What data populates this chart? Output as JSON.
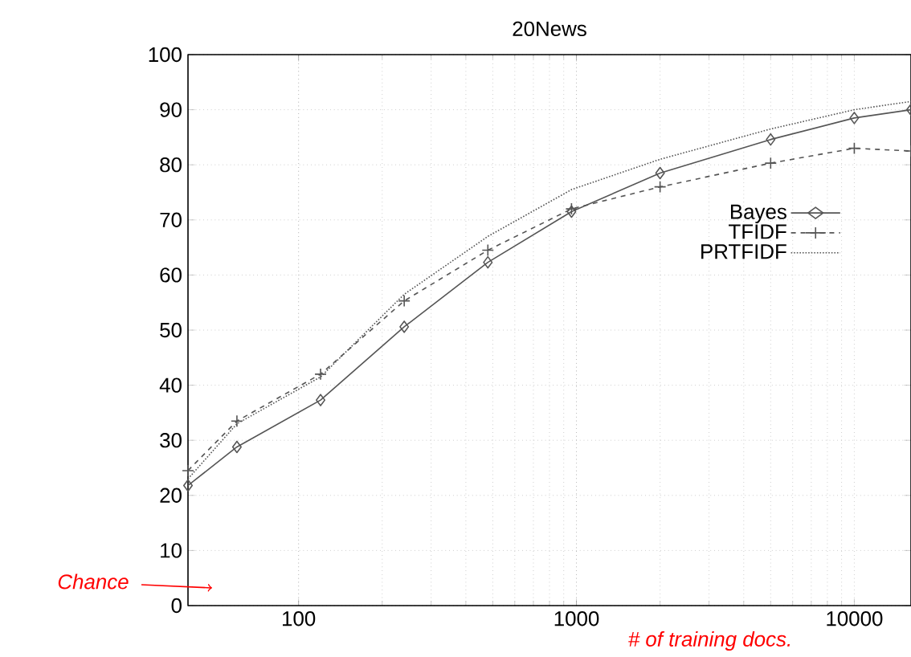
{
  "chart_data": {
    "type": "line",
    "title": "20News",
    "x": [
      40,
      60,
      120,
      240,
      480,
      960,
      2000,
      5000,
      10000,
      16000
    ],
    "series": [
      {
        "name": "Bayes",
        "color": "#555555",
        "marker": "diamond",
        "line_style": "solid",
        "values": [
          21.8,
          28.8,
          37.3,
          50.6,
          62.3,
          71.5,
          78.5,
          84.6,
          88.5,
          90
        ]
      },
      {
        "name": "TFIDF",
        "color": "#555555",
        "marker": "cross",
        "line_style": "dashed",
        "values": [
          24.5,
          33.5,
          42,
          55.3,
          64.5,
          72,
          76,
          80.3,
          83,
          82.5
        ]
      },
      {
        "name": "PRTFIDF",
        "color": "#555555",
        "marker": "none",
        "line_style": "dotted",
        "values": [
          23,
          33,
          41.5,
          56.5,
          67,
          75.5,
          81,
          86.5,
          90,
          91.5
        ]
      }
    ],
    "log": "x",
    "xlim": [
      40,
      16000
    ],
    "ylim": [
      0,
      100
    ],
    "xticks": [
      100,
      1000,
      10000
    ],
    "yticks": [
      0,
      10,
      20,
      30,
      40,
      50,
      60,
      70,
      80,
      90,
      100
    ],
    "grid": true,
    "legend": "right",
    "annotations": [
      "Chance",
      "# of training docs."
    ]
  }
}
